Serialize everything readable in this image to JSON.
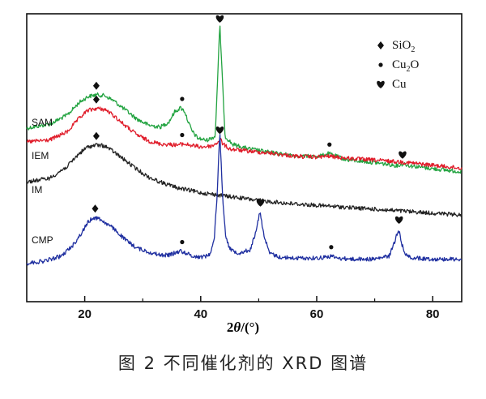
{
  "caption": "图 2   不同催化剂的 XRD 图谱",
  "chart_data": {
    "type": "line",
    "title": "",
    "xlabel": "2θ/(°)",
    "ylabel": "",
    "xlim": [
      10,
      85
    ],
    "xticks": [
      20,
      40,
      60,
      80
    ],
    "y_axis": "arbitrary intensity, no ticks",
    "grid": false,
    "legend": {
      "placement": "top-right",
      "entries": [
        {
          "marker": "diamond",
          "label": "SiO2",
          "text": "SiO",
          "sub": "2"
        },
        {
          "marker": "circle",
          "label": "Cu2O",
          "pre": "Cu",
          "sub": "2",
          "post": "O"
        },
        {
          "marker": "heart",
          "label": "Cu",
          "text": "Cu"
        }
      ]
    },
    "series": [
      {
        "name": "SAM",
        "color": "#22a340",
        "x": [
          10,
          14,
          17,
          19,
          20.5,
          22,
          23.5,
          25,
          27,
          29,
          31,
          33,
          34.5,
          35.5,
          36.5,
          37.2,
          37.8,
          38.5,
          39.5,
          41,
          42.5,
          43.3,
          44.2,
          45.5,
          48,
          52,
          56,
          59,
          61,
          62,
          63,
          65,
          70,
          74,
          75,
          76,
          80,
          85
        ],
        "y": [
          0.8,
          0.84,
          0.93,
          1.05,
          1.11,
          1.13,
          1.12,
          1.07,
          0.98,
          0.89,
          0.83,
          0.81,
          0.86,
          0.96,
          1.0,
          0.97,
          0.87,
          0.77,
          0.7,
          0.68,
          0.72,
          1.82,
          0.72,
          0.64,
          0.6,
          0.56,
          0.53,
          0.52,
          0.53,
          0.55,
          0.53,
          0.49,
          0.46,
          0.43,
          0.45,
          0.43,
          0.4,
          0.37
        ]
      },
      {
        "name": "IEM",
        "color": "#e01c2a",
        "x": [
          10,
          14,
          17,
          19,
          20.5,
          22,
          23.5,
          25,
          27,
          29,
          31,
          33,
          36,
          37,
          38,
          40,
          42,
          43,
          43.4,
          43.8,
          45,
          48,
          52,
          56,
          60,
          62,
          65,
          70,
          75,
          80,
          85
        ],
        "y": [
          0.6,
          0.62,
          0.7,
          0.83,
          0.91,
          0.93,
          0.92,
          0.86,
          0.76,
          0.67,
          0.61,
          0.58,
          0.57,
          0.58,
          0.57,
          0.55,
          0.56,
          0.6,
          0.63,
          0.58,
          0.53,
          0.51,
          0.49,
          0.46,
          0.45,
          0.46,
          0.44,
          0.42,
          0.4,
          0.37,
          0.34
        ]
      },
      {
        "name": "IM",
        "color": "#222222",
        "x": [
          10,
          14,
          17,
          19,
          20.5,
          22,
          23.5,
          25,
          27,
          29,
          31,
          33,
          36,
          40,
          45,
          50,
          55,
          60,
          65,
          70,
          75,
          80,
          85
        ],
        "y": [
          0.48,
          0.52,
          0.64,
          0.77,
          0.84,
          0.86,
          0.85,
          0.79,
          0.7,
          0.61,
          0.53,
          0.48,
          0.42,
          0.37,
          0.33,
          0.29,
          0.26,
          0.24,
          0.22,
          0.2,
          0.18,
          0.16,
          0.14
        ]
      },
      {
        "name": "CMP",
        "color": "#1f2fa0",
        "x": [
          10,
          13,
          16,
          18,
          19.5,
          20.5,
          21.5,
          22.5,
          23.5,
          25,
          27,
          29,
          31,
          33,
          34.5,
          35.5,
          36.5,
          37.5,
          38.5,
          40,
          41.5,
          42.3,
          42.8,
          43.3,
          43.8,
          44.3,
          45,
          46.5,
          48.5,
          49.5,
          50.2,
          50.9,
          51.8,
          53.5,
          56,
          60,
          61.5,
          62.5,
          63.5,
          66,
          70,
          72.5,
          73.5,
          74.1,
          74.7,
          75.5,
          77,
          80,
          85
        ],
        "y": [
          -0.02,
          0.0,
          0.05,
          0.16,
          0.28,
          0.38,
          0.43,
          0.42,
          0.38,
          0.32,
          0.21,
          0.13,
          0.09,
          0.06,
          0.06,
          0.08,
          0.1,
          0.08,
          0.05,
          0.04,
          0.06,
          0.2,
          0.62,
          1.28,
          0.6,
          0.26,
          0.12,
          0.08,
          0.11,
          0.28,
          0.49,
          0.26,
          0.08,
          0.04,
          0.03,
          0.03,
          0.04,
          0.05,
          0.03,
          0.02,
          0.02,
          0.05,
          0.2,
          0.32,
          0.16,
          0.05,
          0.03,
          0.02,
          0.02
        ]
      }
    ],
    "markers": [
      {
        "series": "SAM",
        "type": "diamond",
        "x": 22
      },
      {
        "series": "SAM",
        "type": "circle",
        "x": 36.8
      },
      {
        "series": "SAM",
        "type": "heart",
        "x": 43.3
      },
      {
        "series": "SAM",
        "type": "circle",
        "x": 62.2
      },
      {
        "series": "SAM",
        "type": "heart",
        "x": 74.8
      },
      {
        "series": "IEM",
        "type": "diamond",
        "x": 22
      },
      {
        "series": "IEM",
        "type": "circle",
        "x": 36.8
      },
      {
        "series": "IEM",
        "type": "heart",
        "x": 43.3
      },
      {
        "series": "IM",
        "type": "diamond",
        "x": 22
      },
      {
        "series": "CMP",
        "type": "diamond",
        "x": 21.8
      },
      {
        "series": "CMP",
        "type": "circle",
        "x": 36.8
      },
      {
        "series": "CMP",
        "type": "heart",
        "x": 50.3
      },
      {
        "series": "CMP",
        "type": "circle",
        "x": 62.5
      },
      {
        "series": "CMP",
        "type": "heart",
        "x": 74.2
      }
    ]
  }
}
